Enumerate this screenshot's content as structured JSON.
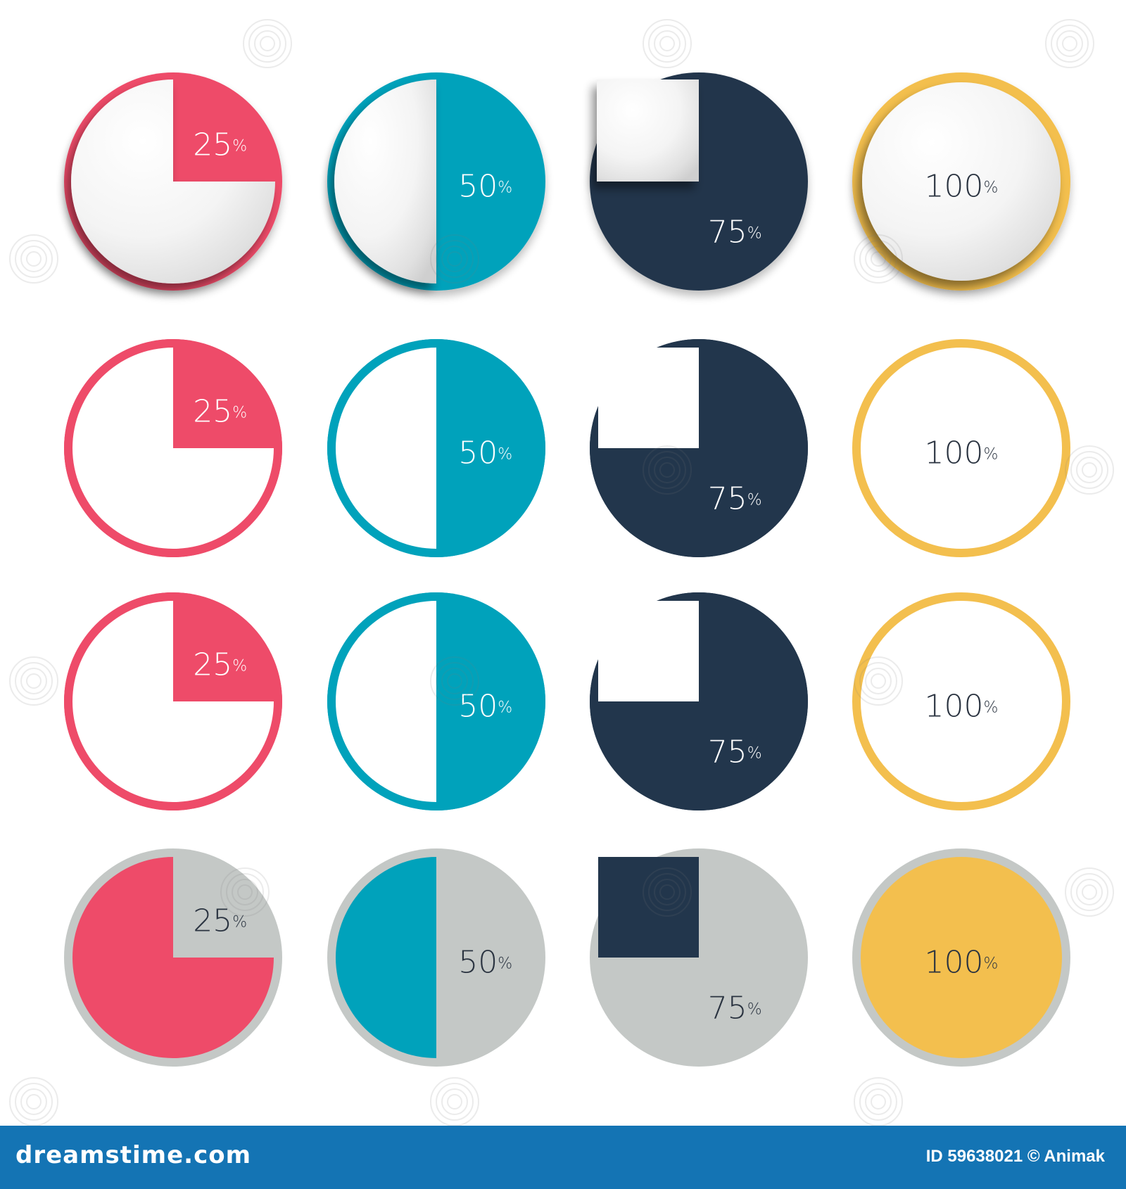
{
  "colors": {
    "red": "#ee4b69",
    "teal": "#00a2bb",
    "navy": "#22364c",
    "yellow": "#f3bf4e",
    "gray": "#c4c8c6",
    "white": "#ffffff",
    "label_dark": "#2a3340",
    "label_light": "#ffffff"
  },
  "chart_data": [
    {
      "type": "pie",
      "style": "3d-ball",
      "rows": [
        {
          "value": 25,
          "label": "25",
          "unit": "%",
          "color": "red",
          "label_color": "label_light"
        },
        {
          "value": 50,
          "label": "50",
          "unit": "%",
          "color": "teal",
          "label_color": "label_light"
        },
        {
          "value": 75,
          "label": "75",
          "unit": "%",
          "color": "navy",
          "label_color": "label_light"
        },
        {
          "value": 100,
          "label": "100",
          "unit": "%",
          "color": "yellow",
          "label_color": "label_dark"
        }
      ]
    },
    {
      "type": "pie",
      "style": "flat-ring",
      "rows": [
        {
          "value": 25,
          "label": "25",
          "unit": "%",
          "color": "red",
          "label_color": "label_light"
        },
        {
          "value": 50,
          "label": "50",
          "unit": "%",
          "color": "teal",
          "label_color": "label_light"
        },
        {
          "value": 75,
          "label": "75",
          "unit": "%",
          "color": "navy",
          "label_color": "label_light"
        },
        {
          "value": 100,
          "label": "100",
          "unit": "%",
          "color": "yellow",
          "label_color": "label_dark"
        }
      ]
    },
    {
      "type": "pie",
      "style": "flat-ring",
      "rows": [
        {
          "value": 25,
          "label": "25",
          "unit": "%",
          "color": "red",
          "label_color": "label_light"
        },
        {
          "value": 50,
          "label": "50",
          "unit": "%",
          "color": "teal",
          "label_color": "label_light"
        },
        {
          "value": 75,
          "label": "75",
          "unit": "%",
          "color": "navy",
          "label_color": "label_light"
        },
        {
          "value": 100,
          "label": "100",
          "unit": "%",
          "color": "yellow",
          "label_color": "label_dark"
        }
      ]
    },
    {
      "type": "pie",
      "style": "gray-inverse",
      "rows": [
        {
          "value": 25,
          "label": "25",
          "unit": "%",
          "color": "red",
          "label_color": "label_dark"
        },
        {
          "value": 50,
          "label": "50",
          "unit": "%",
          "color": "teal",
          "label_color": "label_dark"
        },
        {
          "value": 75,
          "label": "75",
          "unit": "%",
          "color": "navy",
          "label_color": "label_dark"
        },
        {
          "value": 100,
          "label": "100",
          "unit": "%",
          "color": "yellow",
          "label_color": "label_dark"
        }
      ]
    }
  ],
  "watermark": {
    "site": "dreamstime.com",
    "image_id": "ID 59638021 © Animak"
  }
}
